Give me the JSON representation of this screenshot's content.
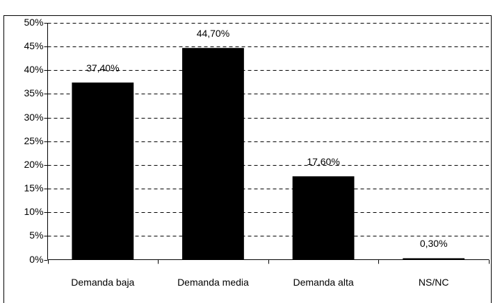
{
  "chart_data": {
    "type": "bar",
    "categories": [
      "Demanda baja",
      "Demanda media",
      "Demanda alta",
      "NS/NC"
    ],
    "values": [
      37.4,
      44.7,
      17.6,
      0.3
    ],
    "value_labels": [
      "37,40%",
      "44,70%",
      "17,60%",
      "0,30%"
    ],
    "color": "#000000",
    "ylim": [
      0,
      50
    ],
    "yticks": [
      {
        "value": 0,
        "label": "0%"
      },
      {
        "value": 5,
        "label": "5%"
      },
      {
        "value": 10,
        "label": "10%"
      },
      {
        "value": 15,
        "label": "15%"
      },
      {
        "value": 20,
        "label": "20%"
      },
      {
        "value": 25,
        "label": "25%"
      },
      {
        "value": 30,
        "label": "30%"
      },
      {
        "value": 35,
        "label": "35%"
      },
      {
        "value": 40,
        "label": "40%"
      },
      {
        "value": 45,
        "label": "45%"
      },
      {
        "value": 50,
        "label": "50%"
      }
    ],
    "grid": true
  }
}
